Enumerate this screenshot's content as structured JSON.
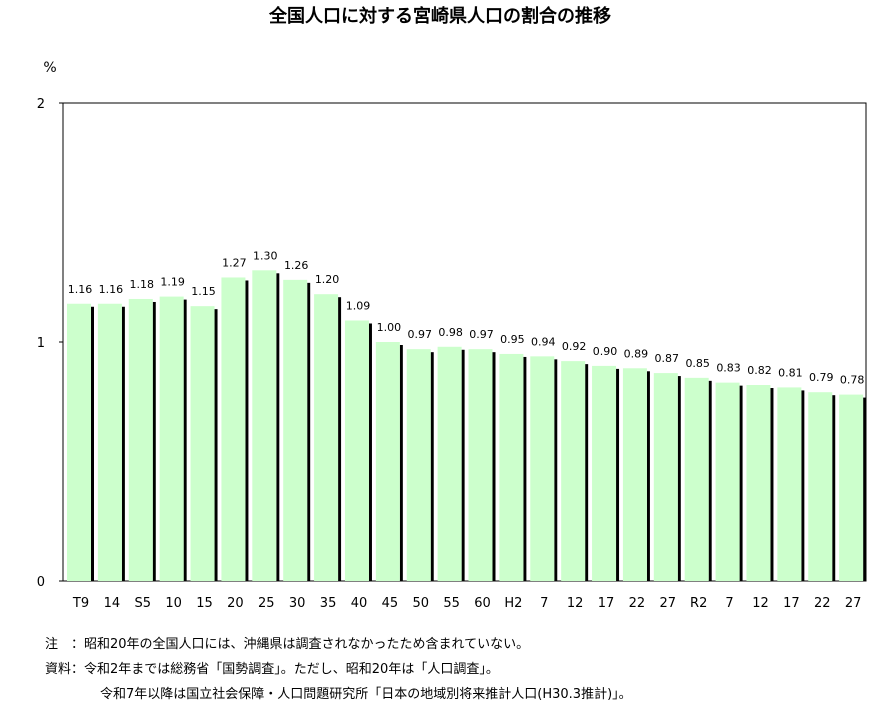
{
  "chart_data": {
    "type": "bar",
    "title": "全国人口に対する宮崎県人口の割合の推移",
    "ylabel": "%",
    "xlabel": "",
    "ylim": [
      0,
      2
    ],
    "yticks": [
      "0",
      "1",
      "2"
    ],
    "grid": false,
    "categories": [
      "T9",
      "14",
      "S5",
      "10",
      "15",
      "20",
      "25",
      "30",
      "35",
      "40",
      "45",
      "50",
      "55",
      "60",
      "H2",
      "7",
      "12",
      "17",
      "22",
      "27",
      "R2",
      "7",
      "12",
      "17",
      "22",
      "27"
    ],
    "values": [
      1.16,
      1.16,
      1.18,
      1.19,
      1.15,
      1.27,
      1.3,
      1.26,
      1.2,
      1.09,
      1.0,
      0.97,
      0.98,
      0.97,
      0.95,
      0.94,
      0.92,
      0.9,
      0.89,
      0.87,
      0.85,
      0.83,
      0.82,
      0.81,
      0.79,
      0.78
    ],
    "labels": [
      "1.16",
      "1.16",
      "1.18",
      "1.19",
      "1.15",
      "1.27",
      "1.30",
      "1.26",
      "1.20",
      "1.09",
      "1.00",
      "0.97",
      "0.98",
      "0.97",
      "0.95",
      "0.94",
      "0.92",
      "0.90",
      "0.89",
      "0.87",
      "0.85",
      "0.83",
      "0.82",
      "0.81",
      "0.79",
      "0.78"
    ],
    "bar_color": "#ccffcc",
    "shadow_color": "#000000"
  },
  "notes": {
    "note_label": "注　：",
    "note_text": "昭和20年の全国人口には、沖縄県は調査されなかったため含まれていない。",
    "source_label": "資料：",
    "source_line1": "令和2年までは総務省「国勢調査」。ただし、昭和20年は「人口調査」。",
    "source_line2": "令和7年以降は国立社会保障・人口問題研究所「日本の地域別将来推計人口(H30.3推計)」。"
  }
}
